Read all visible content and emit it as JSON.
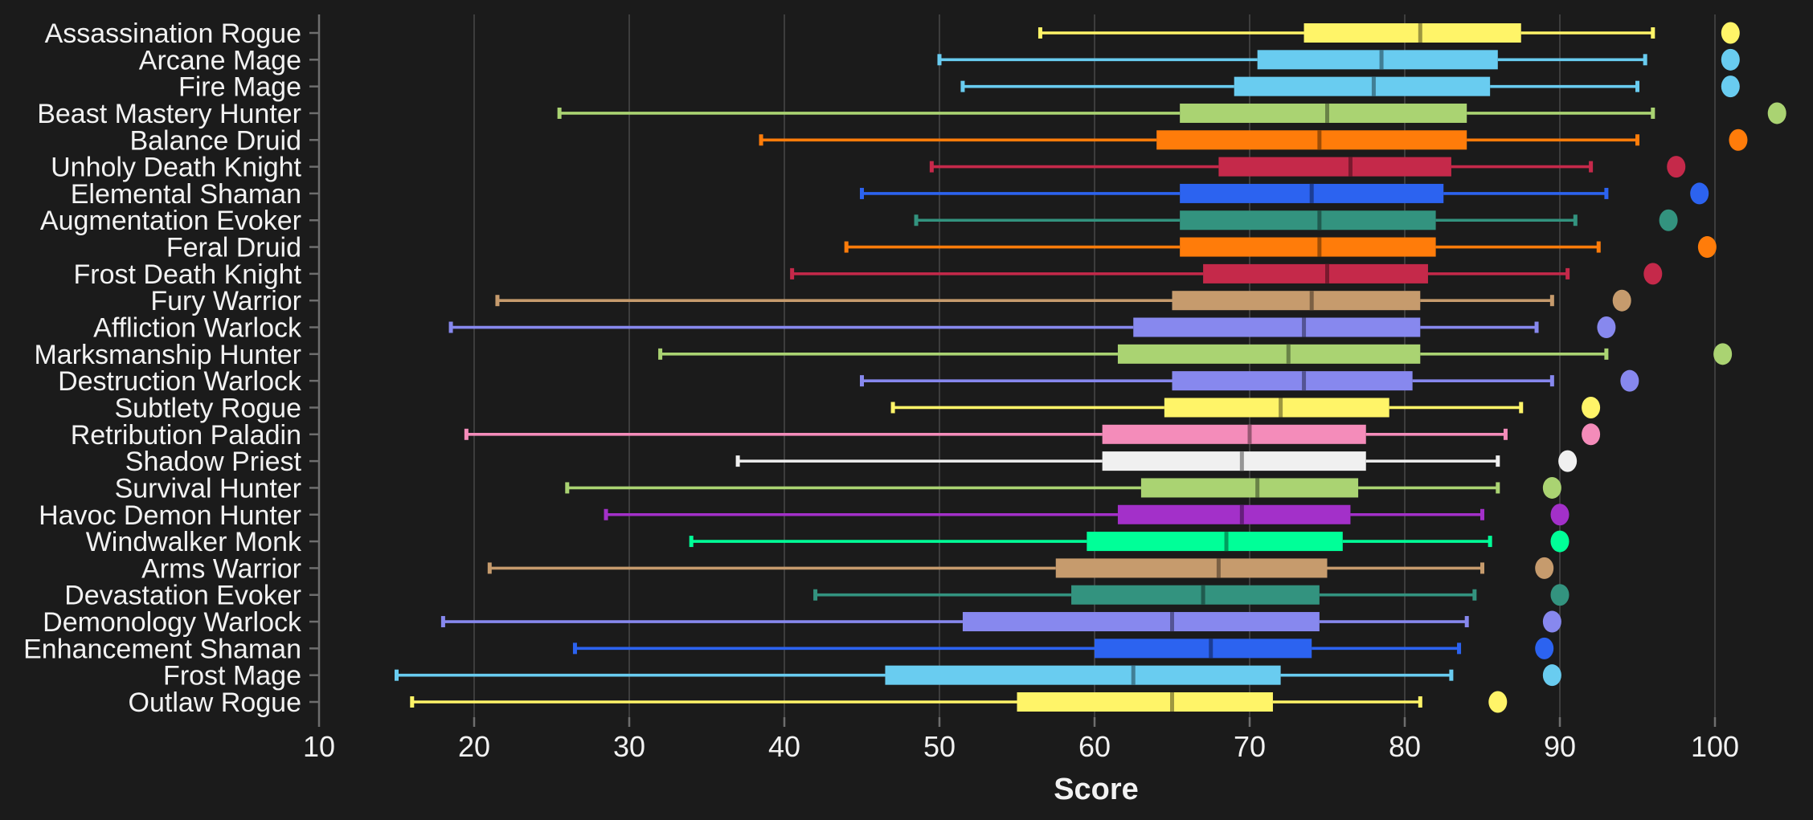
{
  "chart_data": {
    "type": "boxplot",
    "orientation": "horizontal",
    "title": "",
    "xlabel": "Score",
    "x_ticks": [
      10,
      20,
      30,
      40,
      50,
      60,
      70,
      80,
      90,
      100
    ],
    "xlim": [
      9.0,
      106.3
    ],
    "grid": true,
    "legend": "none",
    "background_color": "#1B1B1B",
    "text_color": "#F2F2F2",
    "grid_color": "#3D3D3D",
    "spine_color": "#6E6E6E",
    "categories": [
      "Assassination Rogue",
      "Arcane Mage",
      "Fire Mage",
      "Beast Mastery Hunter",
      "Balance Druid",
      "Unholy Death Knight",
      "Elemental Shaman",
      "Augmentation Evoker",
      "Feral Druid",
      "Frost Death Knight",
      "Fury Warrior",
      "Affliction Warlock",
      "Marksmanship Hunter",
      "Destruction Warlock",
      "Subtlety Rogue",
      "Retribution Paladin",
      "Shadow Priest",
      "Survival Hunter",
      "Havoc Demon Hunter",
      "Windwalker Monk",
      "Arms Warrior",
      "Devastation Evoker",
      "Demonology Warlock",
      "Enhancement Shaman",
      "Frost Mage",
      "Outlaw Rogue"
    ],
    "series": [
      {
        "label": "Assassination Rogue",
        "color": "#FFF468",
        "low": 56.5,
        "q1": 73.5,
        "median": 81.0,
        "q3": 87.5,
        "high": 96.0,
        "outlier": 101.0
      },
      {
        "label": "Arcane Mage",
        "color": "#69CCF0",
        "low": 50.0,
        "q1": 70.5,
        "median": 78.5,
        "q3": 86.0,
        "high": 95.5,
        "outlier": 101.0
      },
      {
        "label": "Fire Mage",
        "color": "#69CCF0",
        "low": 51.5,
        "q1": 69.0,
        "median": 78.0,
        "q3": 85.5,
        "high": 95.0,
        "outlier": 101.0
      },
      {
        "label": "Beast Mastery Hunter",
        "color": "#AAD372",
        "low": 25.5,
        "q1": 65.5,
        "median": 75.0,
        "q3": 84.0,
        "high": 96.0,
        "outlier": 104.0
      },
      {
        "label": "Balance Druid",
        "color": "#FF7C0A",
        "low": 38.5,
        "q1": 64.0,
        "median": 74.5,
        "q3": 84.0,
        "high": 95.0,
        "outlier": 101.5
      },
      {
        "label": "Unholy Death Knight",
        "color": "#C5294A",
        "low": 49.5,
        "q1": 68.0,
        "median": 76.5,
        "q3": 83.0,
        "high": 92.0,
        "outlier": 97.5
      },
      {
        "label": "Elemental Shaman",
        "color": "#2C63F0",
        "low": 45.0,
        "q1": 65.5,
        "median": 74.0,
        "q3": 82.5,
        "high": 93.0,
        "outlier": 99.0
      },
      {
        "label": "Augmentation Evoker",
        "color": "#33937F",
        "low": 48.5,
        "q1": 65.5,
        "median": 74.5,
        "q3": 82.0,
        "high": 91.0,
        "outlier": 97.0
      },
      {
        "label": "Feral Druid",
        "color": "#FF7C0A",
        "low": 44.0,
        "q1": 65.5,
        "median": 74.5,
        "q3": 82.0,
        "high": 92.5,
        "outlier": 99.5
      },
      {
        "label": "Frost Death Knight",
        "color": "#C5294A",
        "low": 40.5,
        "q1": 67.0,
        "median": 75.0,
        "q3": 81.5,
        "high": 90.5,
        "outlier": 96.0
      },
      {
        "label": "Fury Warrior",
        "color": "#C69B6D",
        "low": 21.5,
        "q1": 65.0,
        "median": 74.0,
        "q3": 81.0,
        "high": 89.5,
        "outlier": 94.0
      },
      {
        "label": "Affliction Warlock",
        "color": "#8788EE",
        "low": 18.5,
        "q1": 62.5,
        "median": 73.5,
        "q3": 81.0,
        "high": 88.5,
        "outlier": 93.0
      },
      {
        "label": "Marksmanship Hunter",
        "color": "#AAD372",
        "low": 32.0,
        "q1": 61.5,
        "median": 72.5,
        "q3": 81.0,
        "high": 93.0,
        "outlier": 100.5
      },
      {
        "label": "Destruction Warlock",
        "color": "#8788EE",
        "low": 45.0,
        "q1": 65.0,
        "median": 73.5,
        "q3": 80.5,
        "high": 89.5,
        "outlier": 94.5
      },
      {
        "label": "Subtlety Rogue",
        "color": "#FFF468",
        "low": 47.0,
        "q1": 64.5,
        "median": 72.0,
        "q3": 79.0,
        "high": 87.5,
        "outlier": 92.0
      },
      {
        "label": "Retribution Paladin",
        "color": "#F48CBA",
        "low": 19.5,
        "q1": 60.5,
        "median": 70.0,
        "q3": 77.5,
        "high": 86.5,
        "outlier": 92.0
      },
      {
        "label": "Shadow Priest",
        "color": "#F0F0F0",
        "low": 37.0,
        "q1": 60.5,
        "median": 69.5,
        "q3": 77.5,
        "high": 86.0,
        "outlier": 90.5
      },
      {
        "label": "Survival Hunter",
        "color": "#AAD372",
        "low": 26.0,
        "q1": 63.0,
        "median": 70.5,
        "q3": 77.0,
        "high": 86.0,
        "outlier": 89.5
      },
      {
        "label": "Havoc Demon Hunter",
        "color": "#A330C9",
        "low": 28.5,
        "q1": 61.5,
        "median": 69.5,
        "q3": 76.5,
        "high": 85.0,
        "outlier": 90.0
      },
      {
        "label": "Windwalker Monk",
        "color": "#00FF98",
        "low": 34.0,
        "q1": 59.5,
        "median": 68.5,
        "q3": 76.0,
        "high": 85.5,
        "outlier": 90.0
      },
      {
        "label": "Arms Warrior",
        "color": "#C69B6D",
        "low": 21.0,
        "q1": 57.5,
        "median": 68.0,
        "q3": 75.0,
        "high": 85.0,
        "outlier": 89.0
      },
      {
        "label": "Devastation Evoker",
        "color": "#33937F",
        "low": 42.0,
        "q1": 58.5,
        "median": 67.0,
        "q3": 74.5,
        "high": 84.5,
        "outlier": 90.0
      },
      {
        "label": "Demonology Warlock",
        "color": "#8788EE",
        "low": 18.0,
        "q1": 51.5,
        "median": 65.0,
        "q3": 74.5,
        "high": 84.0,
        "outlier": 89.5
      },
      {
        "label": "Enhancement Shaman",
        "color": "#2C63F0",
        "low": 26.5,
        "q1": 60.0,
        "median": 67.5,
        "q3": 74.0,
        "high": 83.5,
        "outlier": 89.0
      },
      {
        "label": "Frost Mage",
        "color": "#69CCF0",
        "low": 15.0,
        "q1": 46.5,
        "median": 62.5,
        "q3": 72.0,
        "high": 83.0,
        "outlier": 89.5
      },
      {
        "label": "Outlaw Rogue",
        "color": "#FFF468",
        "low": 16.0,
        "q1": 55.0,
        "median": 65.0,
        "q3": 71.5,
        "high": 81.0,
        "outlier": 86.0
      }
    ]
  }
}
